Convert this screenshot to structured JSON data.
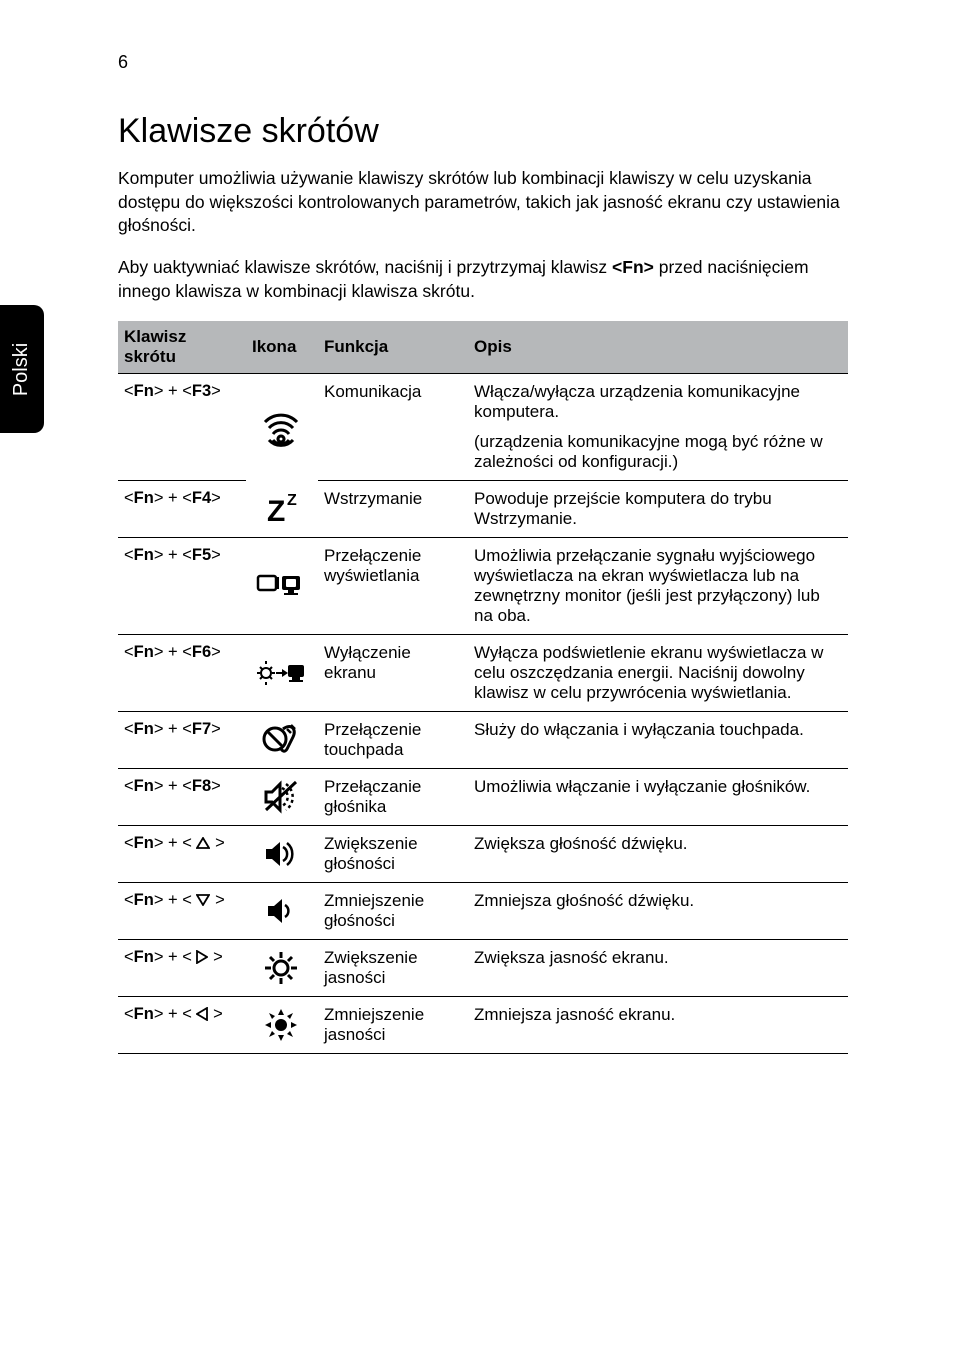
{
  "page_number": "6",
  "side_tab": "Polski",
  "heading": "Klawisze skrótów",
  "intro1": "Komputer umożliwia używanie klawiszy skrótów lub kombinacji klawiszy w celu uzyskania dostępu do większości kontrolowanych parametrów, takich jak jasność ekranu czy ustawienia głośności.",
  "intro2_a": "Aby uaktywniać klawisze skrótów, naciśnij i przytrzymaj klawisz ",
  "intro2_key": "<Fn>",
  "intro2_b": " przed naciśnięciem innego klawisza w kombinacji klawisza skrótu.",
  "head": {
    "c1": "Klawisz skrótu",
    "c2": "Ikona",
    "c3": "Funkcja",
    "c4": "Opis"
  },
  "rows": [
    {
      "hot_a": "Fn",
      "hot_b": "F3",
      "func": "Komunikacja",
      "desc": "Włącza/wyłącza urządzenia komunikacyjne komputera.",
      "desc2": "(urządzenia komunikacyjne mogą być różne w zależności od konfiguracji.)"
    },
    {
      "hot_a": "Fn",
      "hot_b": "F4",
      "func": "Wstrzymanie",
      "desc": "Powoduje przejście komputera do trybu Wstrzymanie."
    },
    {
      "hot_a": "Fn",
      "hot_b": "F5",
      "func": "Przełączenie wyświetlania",
      "desc": "Umożliwia przełączanie sygnału wyjściowego wyświetlacza na ekran wyświetlacza lub na zewnętrzny monitor (jeśli jest przyłączony) lub na oba."
    },
    {
      "hot_a": "Fn",
      "hot_b": "F6",
      "func": "Wyłączenie ekranu",
      "desc": "Wyłącza podświetlenie ekranu wyświetlacza w celu oszczędzania energii. Naciśnij dowolny klawisz w celu przywrócenia wyświetlania."
    },
    {
      "hot_a": "Fn",
      "hot_b": "F7",
      "func": "Przełączenie touchpada",
      "desc": "Służy do włączania i wyłączania touchpada."
    },
    {
      "hot_a": "Fn",
      "hot_b": "F8",
      "func": "Przełączanie głośnika",
      "desc": "Umożliwia włączanie i wyłączanie głośników."
    },
    {
      "hot_a": "Fn",
      "sym": "up",
      "func": "Zwiększenie głośności",
      "desc": "Zwiększa głośność dźwięku."
    },
    {
      "hot_a": "Fn",
      "sym": "down",
      "func": "Zmniejszenie głośności",
      "desc": "Zmniejsza głośność dźwięku."
    },
    {
      "hot_a": "Fn",
      "sym": "right",
      "func": "Zwiększenie jasności",
      "desc": "Zwiększa jasność ekranu."
    },
    {
      "hot_a": "Fn",
      "sym": "left",
      "func": "Zmniejszenie jasności",
      "desc": "Zmniejsza jasność ekranu."
    }
  ],
  "icons": [
    "wireless",
    "sleep",
    "display",
    "blank",
    "touchpad",
    "mute",
    "volup",
    "voldown",
    "brightup",
    "brightdown"
  ],
  "colors": {
    "header_bg": "#b6b8ba",
    "text": "#000000",
    "bg": "#ffffff",
    "tab_bg": "#000000",
    "tab_fg": "#ffffff"
  }
}
